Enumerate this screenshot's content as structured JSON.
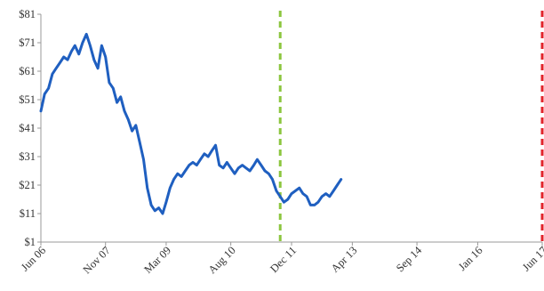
{
  "chart_data": {
    "type": "line",
    "title": "",
    "xlabel": "",
    "ylabel": "",
    "x_ticks": [
      {
        "label": "Jun 06",
        "date": "2006-06-01"
      },
      {
        "label": "Nov 07",
        "date": "2007-11-01"
      },
      {
        "label": "Mar 09",
        "date": "2009-03-01"
      },
      {
        "label": "Aug 10",
        "date": "2010-08-01"
      },
      {
        "label": "Dec 11",
        "date": "2011-12-01"
      },
      {
        "label": "Apr 13",
        "date": "2013-04-01"
      },
      {
        "label": "Sep 14",
        "date": "2014-09-01"
      },
      {
        "label": "Jan 16",
        "date": "2016-01-01"
      },
      {
        "label": "Jun 17",
        "date": "2017-06-01"
      }
    ],
    "y_ticks": [
      "$1",
      "$11",
      "$21",
      "$31",
      "$41",
      "$51",
      "$61",
      "$71",
      "$81"
    ],
    "ylim": [
      1,
      81
    ],
    "xlim": [
      "2006-06-01",
      "2017-06-01"
    ],
    "grid": false,
    "series": [
      {
        "color": "#1f5fc0",
        "points": [
          [
            "2006-06-01",
            47
          ],
          [
            "2006-07-01",
            53
          ],
          [
            "2006-08-01",
            55
          ],
          [
            "2006-09-01",
            60
          ],
          [
            "2006-10-01",
            62
          ],
          [
            "2006-11-01",
            64
          ],
          [
            "2006-12-01",
            66
          ],
          [
            "2007-01-01",
            65
          ],
          [
            "2007-02-01",
            68
          ],
          [
            "2007-03-01",
            70
          ],
          [
            "2007-04-01",
            67
          ],
          [
            "2007-05-01",
            71
          ],
          [
            "2007-06-01",
            74
          ],
          [
            "2007-07-01",
            70
          ],
          [
            "2007-08-01",
            65
          ],
          [
            "2007-09-01",
            62
          ],
          [
            "2007-10-01",
            70
          ],
          [
            "2007-11-01",
            66
          ],
          [
            "2007-12-01",
            57
          ],
          [
            "2008-01-01",
            55
          ],
          [
            "2008-02-01",
            50
          ],
          [
            "2008-03-01",
            52
          ],
          [
            "2008-04-01",
            47
          ],
          [
            "2008-05-01",
            44
          ],
          [
            "2008-06-01",
            40
          ],
          [
            "2008-07-01",
            42
          ],
          [
            "2008-08-01",
            36
          ],
          [
            "2008-09-01",
            30
          ],
          [
            "2008-10-01",
            20
          ],
          [
            "2008-11-01",
            14
          ],
          [
            "2008-12-01",
            12
          ],
          [
            "2009-01-01",
            13
          ],
          [
            "2009-02-01",
            11
          ],
          [
            "2009-03-01",
            15
          ],
          [
            "2009-04-01",
            20
          ],
          [
            "2009-05-01",
            23
          ],
          [
            "2009-06-01",
            25
          ],
          [
            "2009-07-01",
            24
          ],
          [
            "2009-08-01",
            26
          ],
          [
            "2009-09-01",
            28
          ],
          [
            "2009-10-01",
            29
          ],
          [
            "2009-11-01",
            28
          ],
          [
            "2009-12-01",
            30
          ],
          [
            "2010-01-01",
            32
          ],
          [
            "2010-02-01",
            31
          ],
          [
            "2010-03-01",
            33
          ],
          [
            "2010-04-01",
            35
          ],
          [
            "2010-05-01",
            28
          ],
          [
            "2010-06-01",
            27
          ],
          [
            "2010-07-01",
            29
          ],
          [
            "2010-08-01",
            27
          ],
          [
            "2010-09-01",
            25
          ],
          [
            "2010-10-01",
            27
          ],
          [
            "2010-11-01",
            28
          ],
          [
            "2010-12-01",
            27
          ],
          [
            "2011-01-01",
            26
          ],
          [
            "2011-02-01",
            28
          ],
          [
            "2011-03-01",
            30
          ],
          [
            "2011-04-01",
            28
          ],
          [
            "2011-05-01",
            26
          ],
          [
            "2011-06-01",
            25
          ],
          [
            "2011-07-01",
            23
          ],
          [
            "2011-08-01",
            19
          ],
          [
            "2011-09-01",
            17
          ],
          [
            "2011-10-01",
            15
          ],
          [
            "2011-11-01",
            16
          ],
          [
            "2011-12-01",
            18
          ],
          [
            "2012-01-01",
            19
          ],
          [
            "2012-02-01",
            20
          ],
          [
            "2012-03-01",
            18
          ],
          [
            "2012-04-01",
            17
          ],
          [
            "2012-05-01",
            14
          ],
          [
            "2012-06-01",
            14
          ],
          [
            "2012-07-01",
            15
          ],
          [
            "2012-08-01",
            17
          ],
          [
            "2012-09-01",
            18
          ],
          [
            "2012-10-01",
            17
          ],
          [
            "2012-11-01",
            19
          ],
          [
            "2012-12-01",
            21
          ],
          [
            "2013-01-01",
            23
          ]
        ]
      }
    ],
    "reference_lines": [
      {
        "date": "2011-09-01",
        "color": "#8cc63f",
        "style": "dashed"
      },
      {
        "date": "2017-06-01",
        "color": "#e2232b",
        "style": "dashed"
      }
    ]
  }
}
